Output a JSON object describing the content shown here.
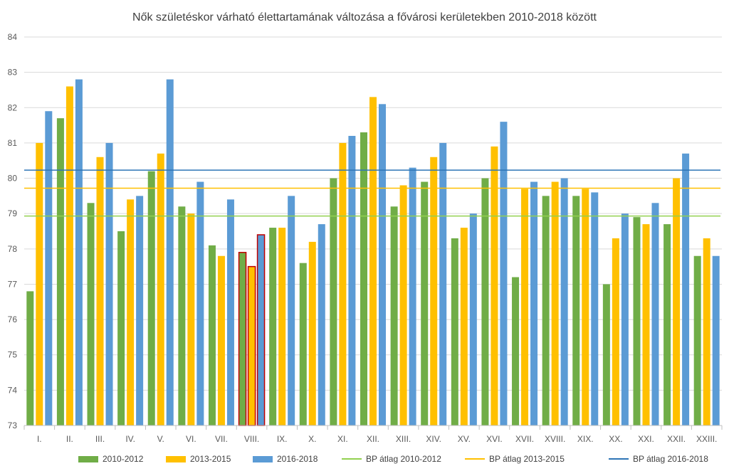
{
  "chart_data": {
    "type": "bar",
    "title": "Nők születéskor várható élettartamának változása a fővárosi kerületekben 2010-2018 között",
    "categories": [
      "I.",
      "II.",
      "III.",
      "IV.",
      "V.",
      "VI.",
      "VII.",
      "VIII.",
      "IX.",
      "X.",
      "XI.",
      "XII.",
      "XIII.",
      "XIV.",
      "XV.",
      "XVI.",
      "XVII.",
      "XVIII.",
      "XIX.",
      "XX.",
      "XXI.",
      "XXII.",
      "XXIII."
    ],
    "series": [
      {
        "name": "2010-2012",
        "color": "#70ad47",
        "values": [
          76.8,
          81.7,
          79.3,
          78.5,
          80.2,
          79.2,
          78.1,
          77.9,
          78.6,
          77.6,
          80.0,
          81.3,
          79.2,
          79.9,
          78.3,
          80.0,
          77.2,
          79.5,
          79.5,
          77.0,
          78.9,
          78.7,
          77.8
        ]
      },
      {
        "name": "2013-2015",
        "color": "#ffc000",
        "values": [
          81.0,
          82.6,
          80.6,
          79.4,
          80.7,
          79.0,
          77.8,
          77.5,
          78.6,
          78.2,
          81.0,
          82.3,
          79.8,
          80.6,
          78.6,
          80.9,
          79.7,
          79.9,
          79.7,
          78.3,
          78.7,
          80.0,
          78.3
        ]
      },
      {
        "name": "2016-2018",
        "color": "#5b9bd5",
        "values": [
          81.9,
          82.8,
          81.0,
          79.5,
          82.8,
          79.9,
          79.4,
          78.4,
          79.5,
          78.7,
          81.2,
          82.1,
          80.3,
          81.0,
          79.0,
          81.6,
          79.9,
          80.0,
          79.6,
          79.0,
          79.3,
          80.7,
          77.8
        ]
      }
    ],
    "reference_lines": [
      {
        "name": "BP átlag 2010-2012",
        "color": "#92d050",
        "value": 78.93
      },
      {
        "name": "BP átlag 2013-2015",
        "color": "#ffc000",
        "value": 79.72
      },
      {
        "name": "BP átlag 2016-2018",
        "color": "#2e75b6",
        "value": 80.23
      }
    ],
    "highlighted_category": "VIII.",
    "highlight_color": "#c00000",
    "ylim": [
      73,
      84
    ],
    "yticks": [
      73,
      74,
      75,
      76,
      77,
      78,
      79,
      80,
      81,
      82,
      83,
      84
    ],
    "grid": true,
    "legend_position": "bottom"
  }
}
